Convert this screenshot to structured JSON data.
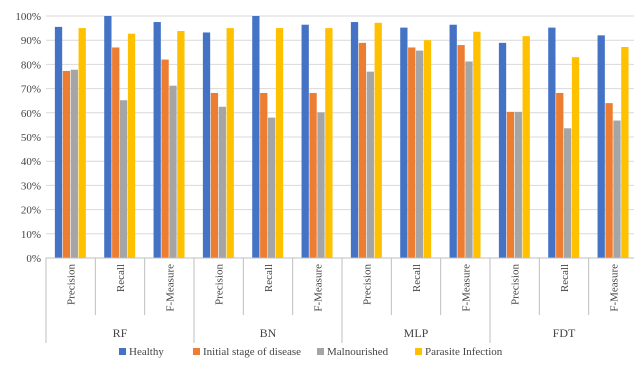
{
  "chart_data": {
    "type": "bar",
    "title": "",
    "xlabel": "",
    "ylabel": "",
    "ylim": [
      0,
      100
    ],
    "y_unit": "%",
    "yticks": [
      0,
      10,
      20,
      30,
      40,
      50,
      60,
      70,
      80,
      90,
      100
    ],
    "ytick_labels": [
      "0%",
      "10%",
      "20%",
      "30%",
      "40%",
      "50%",
      "60%",
      "70%",
      "80%",
      "90%",
      "100%"
    ],
    "grid": true,
    "legend_position": "bottom",
    "groups": [
      "RF",
      "BN",
      "MLP",
      "FDT"
    ],
    "metrics": [
      "Precision",
      "Recall",
      "F-Measure"
    ],
    "categories": [
      "Precision",
      "Recall",
      "F-Measure",
      "Precision",
      "Recall",
      "F-Measure",
      "Precision",
      "Recall",
      "F-Measure",
      "Precision",
      "Recall",
      "F-Measure"
    ],
    "series": [
      {
        "name": "Healthy",
        "color": "#4472C4",
        "values": [
          95.5,
          100,
          97.5,
          93.2,
          100,
          96.4,
          97.5,
          95.2,
          96.4,
          88.9,
          95.2,
          92.0
        ]
      },
      {
        "name": "Initial stage of disease",
        "color": "#ED7D31",
        "values": [
          77.3,
          87.0,
          82.0,
          68.2,
          68.2,
          68.2,
          88.9,
          87.0,
          88.0,
          60.4,
          68.2,
          64.0
        ]
      },
      {
        "name": "Malnourished",
        "color": "#A5A5A5",
        "values": [
          77.8,
          65.2,
          71.2,
          62.5,
          58.0,
          60.2,
          77.0,
          85.7,
          81.2,
          60.4,
          53.6,
          56.8
        ]
      },
      {
        "name": "Parasite Infection",
        "color": "#FFC000",
        "values": [
          95.0,
          92.7,
          93.8,
          95.0,
          95.0,
          95.0,
          97.2,
          90.0,
          93.5,
          91.7,
          83.0,
          87.2
        ]
      }
    ]
  }
}
